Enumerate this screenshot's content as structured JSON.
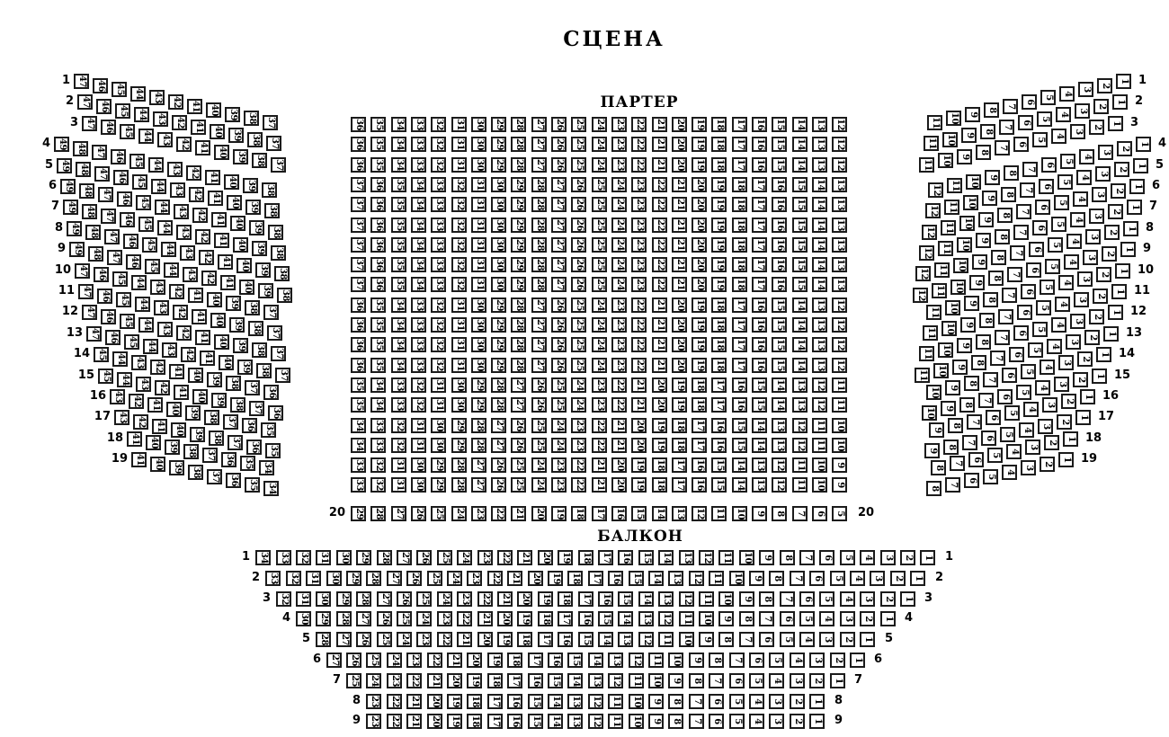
{
  "stage_label": "СЦЕНА",
  "colors": {
    "seat_border": "#1b1b1b",
    "seat_fill": "#ffffff",
    "text": "#000000"
  },
  "parterre": {
    "title": "ПАРТЕР",
    "left_rows": [
      {
        "label": "1",
        "first": 47,
        "last": 37
      },
      {
        "label": "2",
        "first": 47,
        "last": 37
      },
      {
        "label": "3",
        "first": 47,
        "last": 37
      },
      {
        "label": "4",
        "first": 49,
        "last": 38
      },
      {
        "label": "5",
        "first": 49,
        "last": 38
      },
      {
        "label": "6",
        "first": 49,
        "last": 38
      },
      {
        "label": "7",
        "first": 49,
        "last": 38
      },
      {
        "label": "8",
        "first": 49,
        "last": 38
      },
      {
        "label": "9",
        "first": 49,
        "last": 38
      },
      {
        "label": "10",
        "first": 47,
        "last": 37
      },
      {
        "label": "11",
        "first": 47,
        "last": 37
      },
      {
        "label": "12",
        "first": 47,
        "last": 37
      },
      {
        "label": "13",
        "first": 47,
        "last": 37
      },
      {
        "label": "14",
        "first": 45,
        "last": 36
      },
      {
        "label": "15",
        "first": 45,
        "last": 36
      },
      {
        "label": "16",
        "first": 43,
        "last": 35
      },
      {
        "label": "17",
        "first": 43,
        "last": 35
      },
      {
        "label": "18",
        "first": 41,
        "last": 34
      },
      {
        "label": "19",
        "first": 41,
        "last": 34
      }
    ],
    "center_rows": [
      {
        "label_left": "",
        "label_right": "",
        "first": 36,
        "last": 12
      },
      {
        "label_left": "",
        "label_right": "",
        "first": 36,
        "last": 12
      },
      {
        "label_left": "",
        "label_right": "",
        "first": 36,
        "last": 12
      },
      {
        "label_left": "",
        "label_right": "",
        "first": 37,
        "last": 13
      },
      {
        "label_left": "",
        "label_right": "",
        "first": 37,
        "last": 13
      },
      {
        "label_left": "",
        "label_right": "",
        "first": 37,
        "last": 13
      },
      {
        "label_left": "",
        "label_right": "",
        "first": 37,
        "last": 13
      },
      {
        "label_left": "",
        "label_right": "",
        "first": 37,
        "last": 13
      },
      {
        "label_left": "",
        "label_right": "",
        "first": 37,
        "last": 13
      },
      {
        "label_left": "",
        "label_right": "",
        "first": 36,
        "last": 12
      },
      {
        "label_left": "",
        "label_right": "",
        "first": 36,
        "last": 12
      },
      {
        "label_left": "",
        "label_right": "",
        "first": 36,
        "last": 12
      },
      {
        "label_left": "",
        "label_right": "",
        "first": 36,
        "last": 12
      },
      {
        "label_left": "",
        "label_right": "",
        "first": 35,
        "last": 11
      },
      {
        "label_left": "",
        "label_right": "",
        "first": 35,
        "last": 11
      },
      {
        "label_left": "",
        "label_right": "",
        "first": 34,
        "last": 10
      },
      {
        "label_left": "",
        "label_right": "",
        "first": 34,
        "last": 10
      },
      {
        "label_left": "",
        "label_right": "",
        "first": 33,
        "last": 9
      },
      {
        "label_left": "",
        "label_right": "",
        "first": 33,
        "last": 9
      },
      {
        "label_left": "20",
        "label_right": "20",
        "first": 29,
        "last": 5
      }
    ],
    "right_rows": [
      {
        "label": "1",
        "first": 11,
        "last": 1
      },
      {
        "label": "2",
        "first": 11,
        "last": 1
      },
      {
        "label": "3",
        "first": 11,
        "last": 1
      },
      {
        "label": "4",
        "first": 12,
        "last": 1
      },
      {
        "label": "5",
        "first": 12,
        "last": 1
      },
      {
        "label": "6",
        "first": 12,
        "last": 1
      },
      {
        "label": "7",
        "first": 12,
        "last": 1
      },
      {
        "label": "8",
        "first": 12,
        "last": 1
      },
      {
        "label": "9",
        "first": 12,
        "last": 1
      },
      {
        "label": "10",
        "first": 11,
        "last": 1
      },
      {
        "label": "11",
        "first": 11,
        "last": 1
      },
      {
        "label": "12",
        "first": 11,
        "last": 1
      },
      {
        "label": "13",
        "first": 11,
        "last": 1
      },
      {
        "label": "14",
        "first": 10,
        "last": 1
      },
      {
        "label": "15",
        "first": 10,
        "last": 1
      },
      {
        "label": "16",
        "first": 9,
        "last": 1
      },
      {
        "label": "17",
        "first": 9,
        "last": 1
      },
      {
        "label": "18",
        "first": 8,
        "last": 1
      },
      {
        "label": "19",
        "first": 8,
        "last": 1
      }
    ]
  },
  "balcony": {
    "title": "БАЛКОН",
    "rows": [
      {
        "label_left": "1",
        "label_right": "1",
        "first": 34,
        "last": 1
      },
      {
        "label_left": "2",
        "label_right": "2",
        "first": 33,
        "last": 1
      },
      {
        "label_left": "3",
        "label_right": "3",
        "first": 32,
        "last": 1
      },
      {
        "label_left": "4",
        "label_right": "4",
        "first": 30,
        "last": 1
      },
      {
        "label_left": "5",
        "label_right": "5",
        "first": 28,
        "last": 1
      },
      {
        "label_left": "6",
        "label_right": "6",
        "first": 27,
        "last": 1
      },
      {
        "label_left": "7",
        "label_right": "7",
        "first": 25,
        "last": 1
      },
      {
        "label_left": "8",
        "label_right": "8",
        "first": 23,
        "last": 1
      },
      {
        "label_left": "9",
        "label_right": "9",
        "first": 23,
        "last": 1
      }
    ]
  }
}
